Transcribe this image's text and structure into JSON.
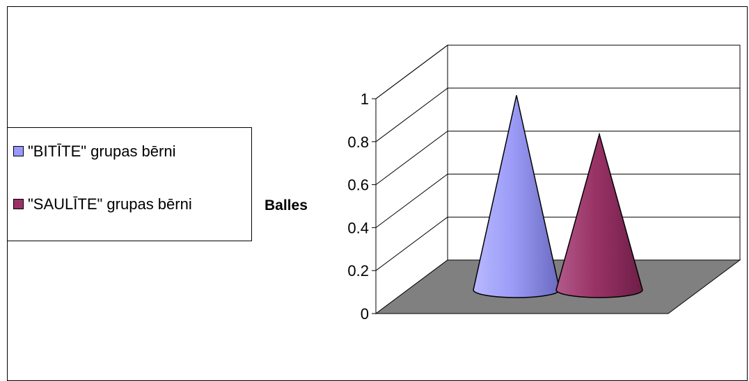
{
  "chart_data": {
    "type": "bar",
    "style": "3d-cone",
    "categories": [
      ""
    ],
    "series": [
      {
        "name": "\"BITĪTE\" grupas bērni",
        "values": [
          1.0
        ],
        "color": "#9999ff"
      },
      {
        "name": "\"SAULĪTE\" grupas bērni",
        "values": [
          0.8
        ],
        "color": "#993366"
      }
    ],
    "ylabel": "Balles",
    "xlabel": "",
    "ylim": [
      0,
      1
    ],
    "yticks": [
      "0",
      "0.2",
      "0.4",
      "0.6",
      "0.8",
      "1"
    ],
    "grid": true,
    "legend_position": "left",
    "floor_color": "#808080"
  }
}
